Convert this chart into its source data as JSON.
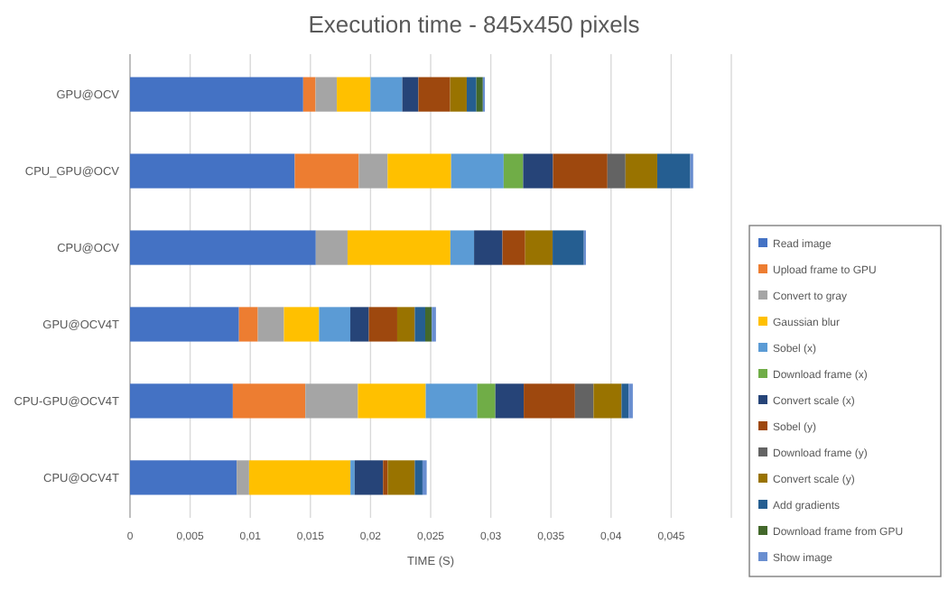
{
  "chart_data": {
    "type": "bar",
    "orientation": "horizontal",
    "stacked": true,
    "title": "Execution time - 845x450 pixels",
    "xlabel": "TIME (S)",
    "categories": [
      "GPU@OCV",
      "CPU_GPU@OCV",
      "CPU@OCV",
      "GPU@OCV4T",
      "CPU-GPU@OCV4T",
      "CPU@OCV4T"
    ],
    "xlim": [
      0,
      0.05
    ],
    "xticks": [
      0,
      {
        "value": 0.005,
        "label": "0,005"
      },
      {
        "value": 0.01,
        "label": "0,01"
      },
      {
        "value": 0.015,
        "label": "0,015"
      },
      {
        "value": 0.02,
        "label": "0,02"
      },
      {
        "value": 0.025,
        "label": "0,025"
      },
      {
        "value": 0.03,
        "label": "0,03"
      },
      {
        "value": 0.035,
        "label": "0,035"
      },
      {
        "value": 0.04,
        "label": "0,04"
      },
      {
        "value": 0.045,
        "label": "0,045"
      },
      {
        "value": 0.05,
        "label": null
      }
    ],
    "grid": "x",
    "legend": "right",
    "series": [
      {
        "name": "Read image",
        "color": "#4472c4",
        "values": [
          0.0144,
          0.0137,
          0.01545,
          0.00906,
          0.00855,
          0.00887
        ]
      },
      {
        "name": "Upload frame to GPU",
        "color": "#ed7d31",
        "values": [
          0.00103,
          0.00532,
          0,
          0.00157,
          0.00603,
          0
        ]
      },
      {
        "name": "Convert to gray",
        "color": "#a5a5a5",
        "values": [
          0.00177,
          0.0024,
          0.00264,
          0.00217,
          0.00437,
          0.00103
        ]
      },
      {
        "name": "Gaussian blur",
        "color": "#ffc000",
        "values": [
          0.0028,
          0.00528,
          0.00855,
          0.00292,
          0.00564,
          0.00843
        ]
      },
      {
        "name": "Sobel (x)",
        "color": "#5b9bd5",
        "values": [
          0.00264,
          0.00437,
          0.00197,
          0.0026,
          0.00429,
          0.00035
        ]
      },
      {
        "name": "Download frame (x)",
        "color": "#70ad47",
        "values": [
          0,
          0.00162,
          0,
          0,
          0.0015,
          0
        ]
      },
      {
        "name": "Convert scale (x)",
        "color": "#264478",
        "values": [
          0.00134,
          0.00248,
          0.00236,
          0.00154,
          0.00236,
          0.00236
        ]
      },
      {
        "name": "Sobel (y)",
        "color": "#9e480e",
        "values": [
          0.00264,
          0.00453,
          0.00189,
          0.00236,
          0.00426,
          0.00039
        ]
      },
      {
        "name": "Download frame (y)",
        "color": "#636363",
        "values": [
          0,
          0.0015,
          0,
          0,
          0.00154,
          0
        ]
      },
      {
        "name": "Convert scale (y)",
        "color": "#997300",
        "values": [
          0.00138,
          0.00264,
          0.00228,
          0.00146,
          0.00233,
          0.00225
        ]
      },
      {
        "name": "Add gradients",
        "color": "#255e91",
        "values": [
          0.0008,
          0.00275,
          0.0026,
          0.00087,
          0.00059,
          0.00064
        ]
      },
      {
        "name": "Download frame from GPU",
        "color": "#43682b",
        "values": [
          0.00054,
          0,
          0,
          0.00054,
          0,
          0
        ]
      },
      {
        "name": "Show image",
        "color": "#698ed0",
        "values": [
          0.00017,
          0.00024,
          0.00017,
          0.00035,
          0.00035,
          0.00035
        ]
      }
    ]
  }
}
